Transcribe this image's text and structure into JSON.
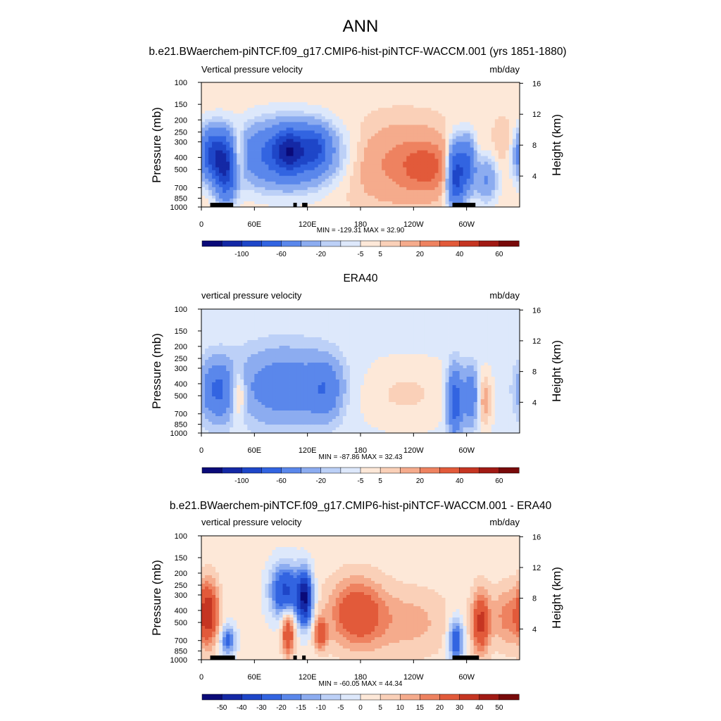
{
  "figure": {
    "title": "ANN"
  },
  "chart_data": [
    {
      "type": "heatmap",
      "panel_title": "b.e21.BWaerchem-piNTCF.f09_g17.CMIP6-hist-piNTCF-WACCM.001 (yrs 1851-1880)",
      "variable": "Vertical pressure velocity",
      "units": "mb/day",
      "ylabel": "Pressure (mb)",
      "ylabel_right": "Height (km)",
      "x_ticks": [
        "0",
        "60E",
        "120E",
        "180",
        "120W",
        "60W"
      ],
      "x_tick_lon": [
        0,
        60,
        120,
        180,
        240,
        300
      ],
      "xlim": [
        0,
        360
      ],
      "y_ticks": [
        "100",
        "150",
        "200",
        "250",
        "300",
        "400",
        "500",
        "700",
        "850",
        "1000"
      ],
      "y_tick_p": [
        100,
        150,
        200,
        250,
        300,
        400,
        500,
        700,
        850,
        1000
      ],
      "ylim": [
        1000,
        100
      ],
      "y_scale": "log",
      "height_ticks": [
        "4",
        "8",
        "12",
        "16"
      ],
      "height_tick_km": [
        4,
        8,
        12,
        16
      ],
      "min": -129.31,
      "max": 32.9,
      "minmax_text": "MIN = -129.31  MAX =  32.90",
      "colorbar": {
        "colors": [
          "#0a0a78",
          "#1428a5",
          "#1e46c8",
          "#3264e1",
          "#5a87eb",
          "#8cacf0",
          "#bcd0f7",
          "#dde8fb",
          "#fde8d8",
          "#fad0b8",
          "#f5ab8c",
          "#ee8260",
          "#e25a3a",
          "#c53522",
          "#a11a14",
          "#780a0a"
        ],
        "labels": [
          "-100",
          "-60",
          "-20",
          "-5",
          "5",
          "20",
          "40",
          "60"
        ],
        "label_boundaries": [
          2,
          4,
          6,
          8,
          9,
          11,
          13,
          15
        ]
      },
      "blobs": [
        {
          "lon": 15,
          "p": 380,
          "dlon": 12,
          "dlogp": 0.32,
          "amp": -70
        },
        {
          "lon": 28,
          "p": 550,
          "dlon": 8,
          "dlogp": 0.35,
          "amp": -55
        },
        {
          "lon": 42,
          "p": 380,
          "dlon": 5,
          "dlogp": 0.3,
          "amp": 25
        },
        {
          "lon": 98,
          "p": 380,
          "dlon": 40,
          "dlogp": 0.4,
          "amp": -55
        },
        {
          "lon": 100,
          "p": 350,
          "dlon": 12,
          "dlogp": 0.25,
          "amp": -55
        },
        {
          "lon": 130,
          "p": 330,
          "dlon": 10,
          "dlogp": 0.25,
          "amp": -35
        },
        {
          "lon": 225,
          "p": 450,
          "dlon": 45,
          "dlogp": 0.5,
          "amp": 20
        },
        {
          "lon": 255,
          "p": 480,
          "dlon": 18,
          "dlogp": 0.3,
          "amp": 20
        },
        {
          "lon": 288,
          "p": 550,
          "dlon": 7,
          "dlogp": 0.4,
          "amp": -80
        },
        {
          "lon": 302,
          "p": 450,
          "dlon": 6,
          "dlogp": 0.35,
          "amp": -45
        },
        {
          "lon": 322,
          "p": 600,
          "dlon": 9,
          "dlogp": 0.3,
          "amp": -25
        },
        {
          "lon": 342,
          "p": 300,
          "dlon": 8,
          "dlogp": 0.3,
          "amp": 8
        }
      ],
      "base": 3,
      "topo": [
        [
          10,
          30
        ],
        [
          28,
          36
        ],
        [
          104,
          108
        ],
        [
          114,
          120
        ],
        [
          284,
          310
        ]
      ]
    },
    {
      "type": "heatmap",
      "panel_title": "ERA40",
      "variable": "vertical pressure velocity",
      "units": "mb/day",
      "ylabel": "Pressure (mb)",
      "ylabel_right": "Height (km)",
      "x_ticks": [
        "0",
        "60E",
        "120E",
        "180",
        "120W",
        "60W"
      ],
      "x_tick_lon": [
        0,
        60,
        120,
        180,
        240,
        300
      ],
      "xlim": [
        0,
        360
      ],
      "y_ticks": [
        "100",
        "150",
        "200",
        "250",
        "300",
        "400",
        "500",
        "700",
        "850",
        "1000"
      ],
      "y_tick_p": [
        100,
        150,
        200,
        250,
        300,
        400,
        500,
        700,
        850,
        1000
      ],
      "ylim": [
        1000,
        100
      ],
      "y_scale": "log",
      "height_ticks": [
        "4",
        "8",
        "12",
        "16"
      ],
      "height_tick_km": [
        4,
        8,
        12,
        16
      ],
      "min": -87.86,
      "max": 32.43,
      "minmax_text": "MIN = -87.86  MAX =  32.43",
      "colorbar": {
        "colors": [
          "#0a0a78",
          "#1428a5",
          "#1e46c8",
          "#3264e1",
          "#5a87eb",
          "#8cacf0",
          "#bcd0f7",
          "#dde8fb",
          "#fde8d8",
          "#fad0b8",
          "#f5ab8c",
          "#ee8260",
          "#e25a3a",
          "#c53522",
          "#a11a14",
          "#780a0a"
        ],
        "labels": [
          "-100",
          "-60",
          "-20",
          "-5",
          "5",
          "20",
          "40",
          "60"
        ],
        "label_boundaries": [
          2,
          4,
          6,
          8,
          9,
          11,
          13,
          15
        ]
      },
      "blobs": [
        {
          "lon": 18,
          "p": 450,
          "dlon": 12,
          "dlogp": 0.35,
          "amp": -40
        },
        {
          "lon": 42,
          "p": 480,
          "dlon": 6,
          "dlogp": 0.3,
          "amp": 22
        },
        {
          "lon": 95,
          "p": 420,
          "dlon": 38,
          "dlogp": 0.45,
          "amp": -30
        },
        {
          "lon": 140,
          "p": 450,
          "dlon": 12,
          "dlogp": 0.35,
          "amp": -25
        },
        {
          "lon": 230,
          "p": 480,
          "dlon": 45,
          "dlogp": 0.45,
          "amp": 8
        },
        {
          "lon": 287,
          "p": 550,
          "dlon": 6,
          "dlogp": 0.4,
          "amp": -55
        },
        {
          "lon": 305,
          "p": 500,
          "dlon": 6,
          "dlogp": 0.35,
          "amp": -35
        },
        {
          "lon": 320,
          "p": 550,
          "dlon": 6,
          "dlogp": 0.35,
          "amp": 15
        }
      ],
      "base": -2,
      "topo": []
    },
    {
      "type": "heatmap",
      "panel_title": "b.e21.BWaerchem-piNTCF.f09_g17.CMIP6-hist-piNTCF-WACCM.001 - ERA40",
      "variable": "vertical pressure velocity",
      "units": "mb/day",
      "ylabel": "Pressure (mb)",
      "ylabel_right": "Height (km)",
      "x_ticks": [
        "0",
        "60E",
        "120E",
        "180",
        "120W",
        "60W"
      ],
      "x_tick_lon": [
        0,
        60,
        120,
        180,
        240,
        300
      ],
      "xlim": [
        0,
        360
      ],
      "y_ticks": [
        "100",
        "150",
        "200",
        "250",
        "300",
        "400",
        "500",
        "700",
        "850",
        "1000"
      ],
      "y_tick_p": [
        100,
        150,
        200,
        250,
        300,
        400,
        500,
        700,
        850,
        1000
      ],
      "ylim": [
        1000,
        100
      ],
      "y_scale": "log",
      "height_ticks": [
        "4",
        "8",
        "12",
        "16"
      ],
      "height_tick_km": [
        4,
        8,
        12,
        16
      ],
      "min": -60.05,
      "max": 44.34,
      "minmax_text": "MIN = -60.05  MAX =  44.34",
      "colorbar": {
        "colors": [
          "#0a0a78",
          "#1428a5",
          "#1e46c8",
          "#3264e1",
          "#5a87eb",
          "#8cacf0",
          "#bcd0f7",
          "#dde8fb",
          "#fde8d8",
          "#fad0b8",
          "#f5ab8c",
          "#ee8260",
          "#e25a3a",
          "#c53522",
          "#a11a14",
          "#780a0a"
        ],
        "labels": [
          "-50",
          "-40",
          "-30",
          "-20",
          "-15",
          "-10",
          "-5",
          "0",
          "5",
          "10",
          "15",
          "20",
          "30",
          "40",
          "50"
        ],
        "label_boundaries": [
          1,
          2,
          3,
          4,
          5,
          6,
          7,
          8,
          9,
          10,
          11,
          12,
          13,
          14,
          15
        ]
      },
      "blobs": [
        {
          "lon": 8,
          "p": 420,
          "dlon": 8,
          "dlogp": 0.4,
          "amp": 35
        },
        {
          "lon": 30,
          "p": 700,
          "dlon": 6,
          "dlogp": 0.2,
          "amp": -25
        },
        {
          "lon": 95,
          "p": 280,
          "dlon": 12,
          "dlogp": 0.35,
          "amp": -35
        },
        {
          "lon": 117,
          "p": 320,
          "dlon": 6,
          "dlogp": 0.35,
          "amp": -50
        },
        {
          "lon": 98,
          "p": 600,
          "dlon": 5,
          "dlogp": 0.3,
          "amp": 30
        },
        {
          "lon": 135,
          "p": 620,
          "dlon": 5,
          "dlogp": 0.2,
          "amp": 25
        },
        {
          "lon": 175,
          "p": 420,
          "dlon": 22,
          "dlogp": 0.45,
          "amp": 25
        },
        {
          "lon": 235,
          "p": 500,
          "dlon": 35,
          "dlogp": 0.45,
          "amp": 10
        },
        {
          "lon": 288,
          "p": 700,
          "dlon": 6,
          "dlogp": 0.3,
          "amp": -30
        },
        {
          "lon": 316,
          "p": 500,
          "dlon": 7,
          "dlogp": 0.4,
          "amp": 30
        },
        {
          "lon": 345,
          "p": 450,
          "dlon": 12,
          "dlogp": 0.4,
          "amp": 15
        }
      ],
      "base": 2,
      "topo": [
        [
          10,
          38
        ],
        [
          28,
          36
        ],
        [
          104,
          108
        ],
        [
          114,
          118
        ],
        [
          284,
          314
        ]
      ]
    }
  ]
}
